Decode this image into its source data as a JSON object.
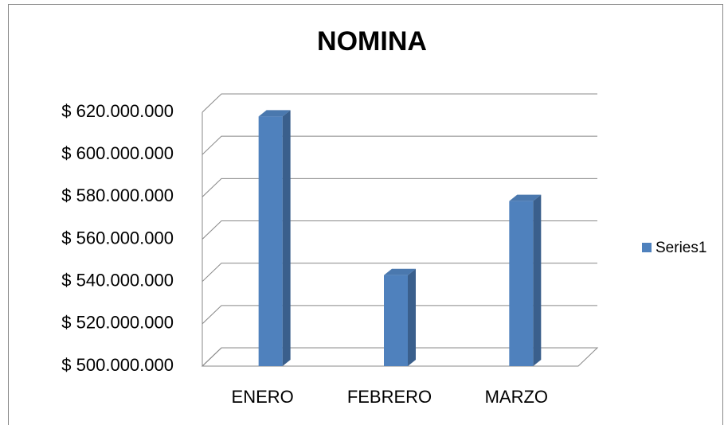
{
  "chart_data": {
    "type": "bar",
    "title": "NOMINA",
    "categories": [
      "ENERO",
      "FEBRERO",
      "MARZO"
    ],
    "series": [
      {
        "name": "Series1",
        "color": "#4f81bd",
        "values": [
          618000000,
          543000000,
          578000000
        ]
      }
    ],
    "ylim": [
      500000000,
      620000000
    ],
    "yticks": [
      {
        "value": 500000000,
        "label": "$ 500.000.000"
      },
      {
        "value": 520000000,
        "label": "$ 520.000.000"
      },
      {
        "value": 540000000,
        "label": "$ 540.000.000"
      },
      {
        "value": 560000000,
        "label": "$ 560.000.000"
      },
      {
        "value": 580000000,
        "label": "$ 580.000.000"
      },
      {
        "value": 600000000,
        "label": "$ 600.000.000"
      },
      {
        "value": 620000000,
        "label": "$ 620.000.000"
      }
    ],
    "grid": true,
    "legend": "right"
  }
}
